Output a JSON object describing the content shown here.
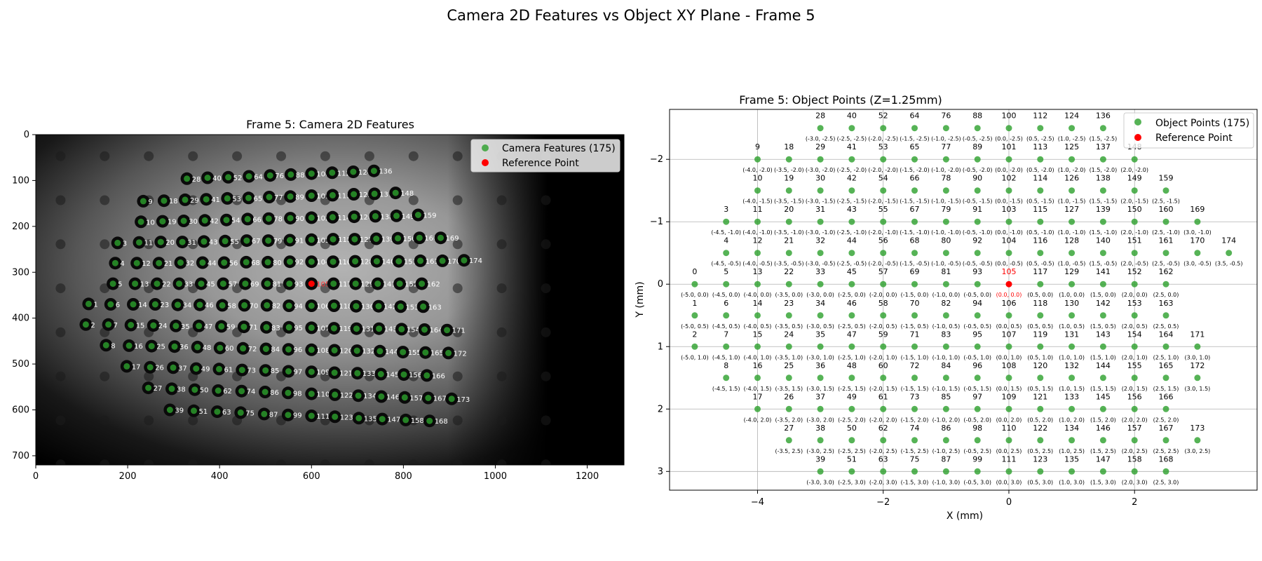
{
  "figure": {
    "suptitle": "Camera 2D Features vs Object XY Plane - Frame 5"
  },
  "chart_data": [
    {
      "type": "scatter",
      "title": "Frame 5: Camera 2D Features",
      "xlabel": "",
      "ylabel": "",
      "xlim": [
        0,
        1280
      ],
      "ylim": [
        720,
        0
      ],
      "xticks": [
        0,
        200,
        400,
        600,
        800,
        1000,
        1200
      ],
      "yticks": [
        0,
        100,
        200,
        300,
        400,
        500,
        600,
        700
      ],
      "grid": false,
      "background": "grayscale camera image of dot grid",
      "legend_position": "top-right",
      "legend": [
        {
          "label": "Camera Features (175)",
          "color": "#2ca02c"
        },
        {
          "label": "Reference Point",
          "color": "#ff0000"
        }
      ],
      "reference_index": 105,
      "notes": "Feature positions (u,v) are estimated; index 105 reference point is at about (600, 325); point 0 is not visible in the image.",
      "points": [],
      "marker_color": "#2ca02c",
      "reference_color": "#ff0000"
    },
    {
      "type": "scatter",
      "title": "Frame 5: Object Points (Z=1.25mm)",
      "xlabel": "X (mm)",
      "ylabel": "Y (mm)",
      "xlim": [
        -5.4,
        3.95
      ],
      "ylim": [
        3.3,
        -2.8
      ],
      "xticks": [
        -4,
        -2,
        0,
        2
      ],
      "yticks": [
        -2,
        -1,
        0,
        1,
        2,
        3
      ],
      "y_inverted": true,
      "grid": true,
      "legend_position": "top-right",
      "legend": [
        {
          "label": "Object Points (175)",
          "color": "#2ca02c"
        },
        {
          "label": "Reference Point",
          "color": "#ff0000"
        }
      ],
      "reference_index": 105,
      "points": [],
      "marker_color": "#2ca02c",
      "reference_color": "#ff0000"
    }
  ]
}
